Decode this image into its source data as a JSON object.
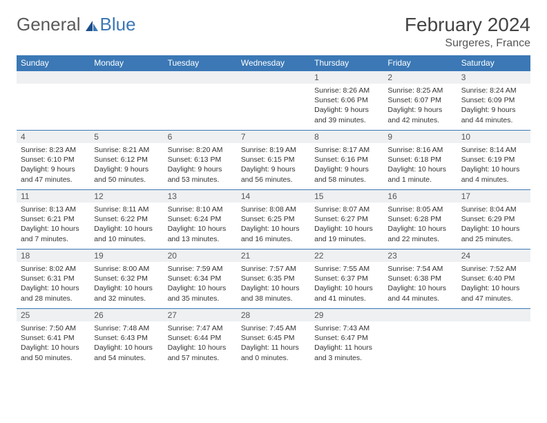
{
  "logo": {
    "text_general": "General",
    "text_blue": "Blue"
  },
  "title": "February 2024",
  "location": "Surgeres, France",
  "colors": {
    "header_bg": "#3b78b5",
    "header_text": "#ffffff",
    "daynum_bg": "#eef0f2",
    "row_border": "#3b78b5",
    "body_text": "#333333",
    "title_text": "#444444"
  },
  "weekdays": [
    "Sunday",
    "Monday",
    "Tuesday",
    "Wednesday",
    "Thursday",
    "Friday",
    "Saturday"
  ],
  "weeks": [
    [
      {
        "n": "",
        "l1": "",
        "l2": "",
        "l3": "",
        "l4": ""
      },
      {
        "n": "",
        "l1": "",
        "l2": "",
        "l3": "",
        "l4": ""
      },
      {
        "n": "",
        "l1": "",
        "l2": "",
        "l3": "",
        "l4": ""
      },
      {
        "n": "",
        "l1": "",
        "l2": "",
        "l3": "",
        "l4": ""
      },
      {
        "n": "1",
        "l1": "Sunrise: 8:26 AM",
        "l2": "Sunset: 6:06 PM",
        "l3": "Daylight: 9 hours",
        "l4": "and 39 minutes."
      },
      {
        "n": "2",
        "l1": "Sunrise: 8:25 AM",
        "l2": "Sunset: 6:07 PM",
        "l3": "Daylight: 9 hours",
        "l4": "and 42 minutes."
      },
      {
        "n": "3",
        "l1": "Sunrise: 8:24 AM",
        "l2": "Sunset: 6:09 PM",
        "l3": "Daylight: 9 hours",
        "l4": "and 44 minutes."
      }
    ],
    [
      {
        "n": "4",
        "l1": "Sunrise: 8:23 AM",
        "l2": "Sunset: 6:10 PM",
        "l3": "Daylight: 9 hours",
        "l4": "and 47 minutes."
      },
      {
        "n": "5",
        "l1": "Sunrise: 8:21 AM",
        "l2": "Sunset: 6:12 PM",
        "l3": "Daylight: 9 hours",
        "l4": "and 50 minutes."
      },
      {
        "n": "6",
        "l1": "Sunrise: 8:20 AM",
        "l2": "Sunset: 6:13 PM",
        "l3": "Daylight: 9 hours",
        "l4": "and 53 minutes."
      },
      {
        "n": "7",
        "l1": "Sunrise: 8:19 AM",
        "l2": "Sunset: 6:15 PM",
        "l3": "Daylight: 9 hours",
        "l4": "and 56 minutes."
      },
      {
        "n": "8",
        "l1": "Sunrise: 8:17 AM",
        "l2": "Sunset: 6:16 PM",
        "l3": "Daylight: 9 hours",
        "l4": "and 58 minutes."
      },
      {
        "n": "9",
        "l1": "Sunrise: 8:16 AM",
        "l2": "Sunset: 6:18 PM",
        "l3": "Daylight: 10 hours",
        "l4": "and 1 minute."
      },
      {
        "n": "10",
        "l1": "Sunrise: 8:14 AM",
        "l2": "Sunset: 6:19 PM",
        "l3": "Daylight: 10 hours",
        "l4": "and 4 minutes."
      }
    ],
    [
      {
        "n": "11",
        "l1": "Sunrise: 8:13 AM",
        "l2": "Sunset: 6:21 PM",
        "l3": "Daylight: 10 hours",
        "l4": "and 7 minutes."
      },
      {
        "n": "12",
        "l1": "Sunrise: 8:11 AM",
        "l2": "Sunset: 6:22 PM",
        "l3": "Daylight: 10 hours",
        "l4": "and 10 minutes."
      },
      {
        "n": "13",
        "l1": "Sunrise: 8:10 AM",
        "l2": "Sunset: 6:24 PM",
        "l3": "Daylight: 10 hours",
        "l4": "and 13 minutes."
      },
      {
        "n": "14",
        "l1": "Sunrise: 8:08 AM",
        "l2": "Sunset: 6:25 PM",
        "l3": "Daylight: 10 hours",
        "l4": "and 16 minutes."
      },
      {
        "n": "15",
        "l1": "Sunrise: 8:07 AM",
        "l2": "Sunset: 6:27 PM",
        "l3": "Daylight: 10 hours",
        "l4": "and 19 minutes."
      },
      {
        "n": "16",
        "l1": "Sunrise: 8:05 AM",
        "l2": "Sunset: 6:28 PM",
        "l3": "Daylight: 10 hours",
        "l4": "and 22 minutes."
      },
      {
        "n": "17",
        "l1": "Sunrise: 8:04 AM",
        "l2": "Sunset: 6:29 PM",
        "l3": "Daylight: 10 hours",
        "l4": "and 25 minutes."
      }
    ],
    [
      {
        "n": "18",
        "l1": "Sunrise: 8:02 AM",
        "l2": "Sunset: 6:31 PM",
        "l3": "Daylight: 10 hours",
        "l4": "and 28 minutes."
      },
      {
        "n": "19",
        "l1": "Sunrise: 8:00 AM",
        "l2": "Sunset: 6:32 PM",
        "l3": "Daylight: 10 hours",
        "l4": "and 32 minutes."
      },
      {
        "n": "20",
        "l1": "Sunrise: 7:59 AM",
        "l2": "Sunset: 6:34 PM",
        "l3": "Daylight: 10 hours",
        "l4": "and 35 minutes."
      },
      {
        "n": "21",
        "l1": "Sunrise: 7:57 AM",
        "l2": "Sunset: 6:35 PM",
        "l3": "Daylight: 10 hours",
        "l4": "and 38 minutes."
      },
      {
        "n": "22",
        "l1": "Sunrise: 7:55 AM",
        "l2": "Sunset: 6:37 PM",
        "l3": "Daylight: 10 hours",
        "l4": "and 41 minutes."
      },
      {
        "n": "23",
        "l1": "Sunrise: 7:54 AM",
        "l2": "Sunset: 6:38 PM",
        "l3": "Daylight: 10 hours",
        "l4": "and 44 minutes."
      },
      {
        "n": "24",
        "l1": "Sunrise: 7:52 AM",
        "l2": "Sunset: 6:40 PM",
        "l3": "Daylight: 10 hours",
        "l4": "and 47 minutes."
      }
    ],
    [
      {
        "n": "25",
        "l1": "Sunrise: 7:50 AM",
        "l2": "Sunset: 6:41 PM",
        "l3": "Daylight: 10 hours",
        "l4": "and 50 minutes."
      },
      {
        "n": "26",
        "l1": "Sunrise: 7:48 AM",
        "l2": "Sunset: 6:43 PM",
        "l3": "Daylight: 10 hours",
        "l4": "and 54 minutes."
      },
      {
        "n": "27",
        "l1": "Sunrise: 7:47 AM",
        "l2": "Sunset: 6:44 PM",
        "l3": "Daylight: 10 hours",
        "l4": "and 57 minutes."
      },
      {
        "n": "28",
        "l1": "Sunrise: 7:45 AM",
        "l2": "Sunset: 6:45 PM",
        "l3": "Daylight: 11 hours",
        "l4": "and 0 minutes."
      },
      {
        "n": "29",
        "l1": "Sunrise: 7:43 AM",
        "l2": "Sunset: 6:47 PM",
        "l3": "Daylight: 11 hours",
        "l4": "and 3 minutes."
      },
      {
        "n": "",
        "l1": "",
        "l2": "",
        "l3": "",
        "l4": ""
      },
      {
        "n": "",
        "l1": "",
        "l2": "",
        "l3": "",
        "l4": ""
      }
    ]
  ]
}
